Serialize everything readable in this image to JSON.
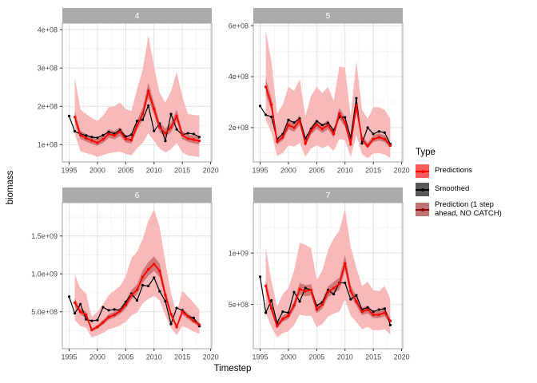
{
  "figure": {
    "ylab": "biomass",
    "xlab": "Timestep",
    "legend": {
      "title": "Type",
      "items": [
        {
          "label": "Predictions",
          "fill": "#FF5C5C",
          "line": "#FF0000"
        },
        {
          "label": "Smoothed",
          "fill": "#595959",
          "line": "#000000"
        },
        {
          "label": "Prediction (1 step ahead, NO CATCH)",
          "label_line1": "Prediction (1 step",
          "label_line2": " ahead, NO CATCH)",
          "fill": "#BF7373",
          "line": "#8B0000"
        }
      ]
    },
    "colors": {
      "ribbon": "#F7B9B9",
      "nocatch_fill": "rgba(139,0,0,0.35)",
      "nocatch_line": "#8B0000",
      "predictions": "#FF0000",
      "smoothed": "#000000",
      "grid_major": "#E2E2E2",
      "grid_minor": "#F1F1F1",
      "panel_border": "#A5A5A5",
      "strip_bg": "#ABABAB",
      "strip_text": "#FFFFFF",
      "axis_text": "#4D4D4D",
      "tick": "#333333"
    }
  },
  "chart_data": [
    {
      "type": "line",
      "facet": "4",
      "y_unit": 100000000.0,
      "xlim": [
        1993.8,
        2020.2
      ],
      "ylim": [
        0.55,
        4.17
      ],
      "x_ticks": [
        1995,
        2000,
        2005,
        2010,
        2015,
        2020
      ],
      "x_minor": [
        1997.5,
        2002.5,
        2007.5,
        2012.5,
        2017.5
      ],
      "y_ticks": [
        1,
        2,
        3,
        4
      ],
      "y_tick_labels": [
        "1e+08",
        "2e+08",
        "3e+08",
        "4e+08"
      ],
      "y_minor": [
        1.5,
        2.5,
        3.5
      ],
      "series": [
        {
          "key": "smoothed",
          "name": "Smoothed",
          "x_start": 1995,
          "y": [
            1.75,
            1.35,
            1.28,
            1.24,
            1.2,
            1.18,
            1.25,
            1.33,
            1.29,
            1.38,
            1.21,
            1.26,
            1.62,
            1.65,
            2.02,
            1.36,
            1.55,
            1.1,
            1.8,
            1.4,
            1.26,
            1.3,
            1.28,
            1.2
          ]
        },
        {
          "key": "predictions",
          "name": "Predictions",
          "x_start": 1996,
          "y": [
            1.72,
            1.25,
            1.17,
            1.11,
            1.05,
            1.14,
            1.28,
            1.24,
            1.34,
            1.15,
            1.12,
            1.5,
            1.8,
            2.4,
            1.93,
            1.45,
            1.3,
            1.45,
            1.75,
            1.25,
            1.16,
            1.13,
            1.1
          ],
          "upper": [
            2.75,
            1.92,
            1.8,
            1.7,
            1.62,
            1.76,
            1.98,
            2.0,
            2.1,
            1.93,
            1.88,
            2.45,
            2.95,
            3.85,
            3.05,
            2.35,
            2.1,
            2.4,
            2.9,
            2.25,
            1.8,
            1.78,
            1.76
          ],
          "lower": [
            1.28,
            0.83,
            0.78,
            0.74,
            0.68,
            0.73,
            0.78,
            0.8,
            0.82,
            0.76,
            0.72,
            0.9,
            1.05,
            1.3,
            1.1,
            0.9,
            0.8,
            0.88,
            1.05,
            0.8,
            0.72,
            0.7,
            0.68
          ]
        },
        {
          "key": "nocatch",
          "name": "Prediction (1 step ahead, NO CATCH)",
          "x_start": 1996,
          "y": [
            1.72,
            1.25,
            1.17,
            1.11,
            1.05,
            1.14,
            1.28,
            1.24,
            1.34,
            1.15,
            1.12,
            1.5,
            1.8,
            2.4,
            1.93,
            1.45,
            1.3,
            1.45,
            1.75,
            1.25,
            1.16,
            1.13,
            1.1
          ],
          "upper": [
            1.87,
            1.36,
            1.28,
            1.21,
            1.14,
            1.24,
            1.4,
            1.35,
            1.46,
            1.25,
            1.22,
            1.64,
            1.96,
            2.62,
            2.1,
            1.58,
            1.42,
            1.58,
            1.91,
            1.36,
            1.26,
            1.23,
            1.2
          ],
          "lower": [
            1.58,
            1.15,
            1.08,
            1.02,
            0.97,
            1.05,
            1.18,
            1.14,
            1.23,
            1.06,
            1.03,
            1.38,
            1.66,
            2.21,
            1.78,
            1.33,
            1.2,
            1.33,
            1.61,
            1.15,
            1.07,
            1.04,
            1.01
          ]
        }
      ]
    },
    {
      "type": "line",
      "facet": "5",
      "y_unit": 100000000.0,
      "xlim": [
        1993.8,
        2020.2
      ],
      "ylim": [
        0.65,
        6.1
      ],
      "x_ticks": [
        1995,
        2000,
        2005,
        2010,
        2015,
        2020
      ],
      "x_minor": [
        1997.5,
        2002.5,
        2007.5,
        2012.5,
        2017.5
      ],
      "y_ticks": [
        2,
        4,
        6
      ],
      "y_tick_labels": [
        "2e+08",
        "4e+08",
        "6e+08"
      ],
      "y_minor": [
        1,
        3,
        5
      ],
      "series": [
        {
          "key": "smoothed",
          "name": "Smoothed",
          "x_start": 1995,
          "y": [
            2.85,
            2.5,
            2.42,
            1.55,
            1.75,
            2.3,
            2.2,
            2.35,
            1.58,
            1.95,
            2.25,
            2.1,
            2.18,
            1.9,
            2.42,
            2.4,
            1.6,
            3.15,
            1.38,
            2.0,
            1.75,
            1.85,
            1.8,
            1.35
          ]
        },
        {
          "key": "predictions",
          "name": "Predictions",
          "x_start": 1996,
          "y": [
            3.6,
            2.9,
            1.45,
            1.62,
            2.1,
            2.0,
            2.28,
            1.38,
            1.88,
            2.12,
            1.95,
            2.1,
            1.75,
            2.55,
            2.2,
            1.35,
            2.85,
            1.55,
            1.28,
            1.55,
            1.62,
            1.55,
            1.3
          ],
          "upper": [
            5.8,
            4.6,
            2.55,
            2.9,
            3.6,
            3.45,
            3.9,
            2.45,
            3.25,
            3.6,
            3.35,
            3.6,
            3.05,
            4.4,
            4.35,
            2.45,
            4.6,
            2.7,
            2.35,
            2.8,
            2.8,
            2.7,
            2.35
          ],
          "lower": [
            2.3,
            1.8,
            0.88,
            1.0,
            1.3,
            1.25,
            1.4,
            0.85,
            1.18,
            1.3,
            1.2,
            1.3,
            1.08,
            1.55,
            1.5,
            0.85,
            1.7,
            0.95,
            0.8,
            0.98,
            1.0,
            0.95,
            0.8
          ]
        },
        {
          "key": "nocatch",
          "name": "Prediction (1 step ahead, NO CATCH)",
          "x_start": 1996,
          "y": [
            3.6,
            2.9,
            1.45,
            1.62,
            2.1,
            2.0,
            2.28,
            1.38,
            1.88,
            2.12,
            1.95,
            2.1,
            1.75,
            2.55,
            2.2,
            1.35,
            2.85,
            1.55,
            1.28,
            1.55,
            1.62,
            1.55,
            1.3
          ],
          "upper": [
            3.92,
            3.16,
            1.58,
            1.77,
            2.29,
            2.18,
            2.49,
            1.5,
            2.05,
            2.31,
            2.13,
            2.29,
            1.91,
            2.78,
            2.4,
            1.47,
            3.11,
            1.69,
            1.4,
            1.69,
            1.77,
            1.69,
            1.42
          ],
          "lower": [
            3.31,
            2.67,
            1.33,
            1.49,
            1.93,
            1.84,
            2.1,
            1.27,
            1.73,
            1.95,
            1.79,
            1.93,
            1.61,
            2.35,
            2.02,
            1.24,
            2.62,
            1.43,
            1.18,
            1.43,
            1.49,
            1.43,
            1.2
          ]
        }
      ]
    },
    {
      "type": "line",
      "facet": "6",
      "y_unit": 100000000.0,
      "xlim": [
        1993.8,
        2020.2
      ],
      "ylim": [
        0.13,
        19.4
      ],
      "x_ticks": [
        1995,
        2000,
        2005,
        2010,
        2015,
        2020
      ],
      "x_minor": [
        1997.5,
        2002.5,
        2007.5,
        2012.5,
        2017.5
      ],
      "y_ticks": [
        5,
        10,
        15
      ],
      "y_tick_labels": [
        "5.0e+08",
        "1.0e+09",
        "1.5e+09"
      ],
      "y_minor": [
        2.5,
        7.5,
        12.5,
        17.5
      ],
      "series": [
        {
          "key": "smoothed",
          "name": "Smoothed",
          "x_start": 1995,
          "y": [
            7.0,
            4.8,
            6.0,
            4.0,
            3.8,
            3.9,
            5.6,
            5.2,
            5.3,
            5.2,
            6.3,
            7.4,
            6.5,
            8.5,
            8.4,
            9.5,
            7.7,
            6.4,
            3.4,
            5.5,
            5.2,
            4.4,
            4.2,
            3.1
          ]
        },
        {
          "key": "predictions",
          "name": "Predictions",
          "x_start": 1996,
          "y": [
            6.2,
            5.0,
            4.6,
            2.6,
            3.0,
            3.6,
            4.3,
            4.6,
            5.1,
            5.9,
            7.2,
            7.9,
            9.6,
            10.6,
            11.3,
            10.4,
            7.2,
            4.7,
            3.0,
            5.0,
            4.4,
            3.8,
            3.3
          ],
          "upper": [
            9.9,
            8.1,
            7.4,
            4.3,
            5.0,
            6.0,
            7.2,
            7.8,
            8.4,
            9.7,
            12.1,
            12.9,
            14.6,
            17.0,
            18.5,
            16.2,
            11.6,
            7.4,
            4.9,
            7.8,
            7.0,
            6.2,
            5.3
          ],
          "lower": [
            3.9,
            3.1,
            2.9,
            1.6,
            1.9,
            2.2,
            2.7,
            2.9,
            3.2,
            3.7,
            4.5,
            4.9,
            6.1,
            6.7,
            7.1,
            6.5,
            4.5,
            2.9,
            1.9,
            3.1,
            2.8,
            2.4,
            2.1
          ]
        },
        {
          "key": "nocatch",
          "name": "Prediction (1 step ahead, NO CATCH)",
          "x_start": 1996,
          "y": [
            6.2,
            5.0,
            4.6,
            2.6,
            3.0,
            3.6,
            4.3,
            4.6,
            5.1,
            5.9,
            7.2,
            7.9,
            9.6,
            10.6,
            11.3,
            10.4,
            7.2,
            4.7,
            3.0,
            5.0,
            4.4,
            3.8,
            3.3
          ],
          "upper": [
            6.76,
            5.45,
            5.01,
            2.83,
            3.27,
            3.92,
            4.69,
            5.01,
            5.56,
            6.43,
            7.85,
            8.61,
            10.46,
            11.55,
            12.32,
            11.34,
            7.85,
            5.12,
            3.27,
            5.45,
            4.8,
            4.14,
            3.6
          ],
          "lower": [
            5.7,
            4.6,
            4.23,
            2.39,
            2.76,
            3.31,
            3.96,
            4.23,
            4.69,
            5.43,
            6.62,
            7.27,
            8.83,
            9.75,
            10.4,
            9.57,
            6.62,
            4.32,
            2.76,
            4.6,
            4.05,
            3.5,
            3.04
          ]
        }
      ]
    },
    {
      "type": "line",
      "facet": "7",
      "y_unit": 100000000.0,
      "xlim": [
        1993.8,
        2020.2
      ],
      "ylim": [
        0.7,
        14.9
      ],
      "x_ticks": [
        1995,
        2000,
        2005,
        2010,
        2015,
        2020
      ],
      "x_minor": [
        1997.5,
        2002.5,
        2007.5,
        2012.5,
        2017.5
      ],
      "y_ticks": [
        5,
        10
      ],
      "y_tick_labels": [
        "5e+08",
        "1e+09"
      ],
      "y_minor": [
        2.5,
        7.5,
        12.5
      ],
      "series": [
        {
          "key": "smoothed",
          "name": "Smoothed",
          "x_start": 1995,
          "y": [
            7.7,
            4.2,
            5.4,
            3.2,
            4.3,
            4.2,
            6.2,
            5.3,
            6.6,
            6.4,
            4.9,
            5.2,
            6.4,
            6.0,
            7.1,
            7.1,
            5.5,
            5.9,
            4.5,
            4.7,
            4.3,
            4.5,
            4.6,
            3.0
          ]
        },
        {
          "key": "predictions",
          "name": "Predictions",
          "x_start": 1996,
          "y": [
            6.8,
            4.6,
            2.9,
            3.6,
            3.9,
            4.9,
            6.5,
            6.3,
            6.4,
            4.5,
            5.0,
            6.2,
            6.6,
            7.0,
            9.0,
            6.3,
            5.3,
            4.3,
            4.5,
            4.0,
            4.0,
            4.2,
            3.4
          ],
          "upper": [
            10.5,
            7.3,
            4.8,
            6.0,
            6.6,
            8.3,
            11.0,
            10.8,
            10.5,
            7.4,
            8.3,
            10.3,
            11.4,
            12.2,
            14.3,
            10.6,
            8.6,
            6.8,
            7.2,
            6.4,
            6.3,
            6.8,
            5.5
          ],
          "lower": [
            4.2,
            2.8,
            1.8,
            2.2,
            2.4,
            3.0,
            4.0,
            3.9,
            3.9,
            2.8,
            3.1,
            3.8,
            4.1,
            4.3,
            5.5,
            3.9,
            3.3,
            2.6,
            2.8,
            2.5,
            2.5,
            2.6,
            2.1
          ]
        },
        {
          "key": "nocatch",
          "name": "Prediction (1 step ahead, NO CATCH)",
          "x_start": 1996,
          "y": [
            6.8,
            4.6,
            2.9,
            3.6,
            3.9,
            4.9,
            6.5,
            6.3,
            6.4,
            4.5,
            5.0,
            6.2,
            6.6,
            7.0,
            9.0,
            6.3,
            5.3,
            4.3,
            4.5,
            4.0,
            4.0,
            4.2,
            3.4
          ],
          "upper": [
            7.41,
            5.01,
            3.16,
            3.92,
            4.25,
            5.34,
            7.09,
            6.87,
            6.98,
            4.91,
            5.45,
            6.76,
            7.19,
            7.63,
            9.81,
            6.87,
            5.78,
            4.69,
            4.91,
            4.36,
            4.36,
            4.58,
            3.71
          ],
          "lower": [
            6.26,
            4.23,
            2.67,
            3.31,
            3.59,
            4.51,
            5.98,
            5.8,
            5.89,
            4.14,
            4.6,
            5.7,
            6.07,
            6.44,
            8.28,
            5.8,
            4.88,
            3.96,
            4.14,
            3.68,
            3.68,
            3.86,
            3.13
          ]
        }
      ]
    }
  ]
}
